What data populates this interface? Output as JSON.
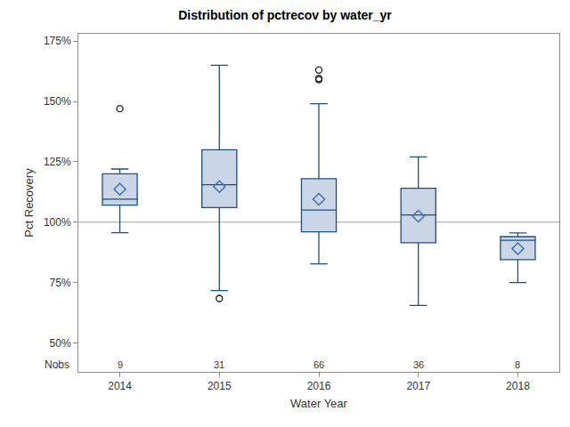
{
  "chart_data": {
    "type": "box",
    "title": "Distribution of pctrecov by water_yr",
    "x_label": "Water Year",
    "y_label": "Pct Recovery",
    "categories": [
      "2014",
      "2015",
      "2016",
      "2017",
      "2018"
    ],
    "q1": [
      107,
      106,
      96,
      91.5,
      84.5
    ],
    "median": [
      109.5,
      115.5,
      105,
      103,
      92.5
    ],
    "q3": [
      120,
      130,
      118,
      114,
      94
    ],
    "lowerfence": [
      95.6,
      71.7,
      82.7,
      65.5,
      75
    ],
    "upperfence": [
      122,
      165,
      149,
      127,
      95.5
    ],
    "mean": [
      113.6,
      114.7,
      109.5,
      102.5,
      89
    ],
    "outliers": [
      [
        147
      ],
      [
        68.4
      ],
      [
        159,
        159.5,
        163
      ],
      [],
      []
    ],
    "nobs_label": "Nobs",
    "nobs": [
      9,
      31,
      66,
      36,
      8
    ],
    "reference_line": 100,
    "color": "#cad5e5",
    "ylim": [
      38,
      178
    ],
    "yticks": [
      {
        "value": 50,
        "label": "50%"
      },
      {
        "value": 75,
        "label": "75%"
      },
      {
        "value": 100,
        "label": "100%"
      },
      {
        "value": 125,
        "label": "125%"
      },
      {
        "value": 150,
        "label": "150%"
      },
      {
        "value": 175,
        "label": "175%"
      }
    ],
    "grid": false
  }
}
